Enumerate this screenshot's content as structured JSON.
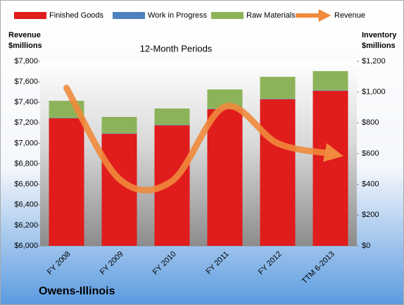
{
  "chart_data": {
    "type": "bar_line",
    "title": "12-Month Periods",
    "footer": "Owens-Illinois",
    "y_label": [
      "Revenue",
      "$millions"
    ],
    "y2_label": [
      "Inventory",
      "$millions"
    ],
    "categories": [
      "FY 2008",
      "FY 2009",
      "FY 2010",
      "FY 2011",
      "FY 2012",
      "TTM 6-2013"
    ],
    "series": [
      {
        "name": "Finished Goods",
        "color": "#e01c1c",
        "axis": "y2",
        "values": [
          829,
          728,
          783,
          889,
          953,
          1008
        ]
      },
      {
        "name": "Work in Progress",
        "color": "#4f81bd",
        "axis": "y2",
        "values": [
          3,
          3,
          3,
          3,
          3,
          3
        ]
      },
      {
        "name": "Raw Materials",
        "color": "#8db35a",
        "axis": "y2",
        "values": [
          111,
          107,
          107,
          125,
          143,
          125
        ]
      },
      {
        "name": "Revenue",
        "color": "#f08a3c",
        "type": "line",
        "values": [
          7540,
          6652,
          6633,
          7358,
          7000,
          6900
        ]
      }
    ],
    "ylim": [
      6000,
      7800
    ],
    "yticks": [
      {
        "value": 6000,
        "label": "$6,000"
      },
      {
        "value": 6200,
        "label": "$6,200"
      },
      {
        "value": 6400,
        "label": "$6,400"
      },
      {
        "value": 6600,
        "label": "$6,600"
      },
      {
        "value": 6800,
        "label": "$6,800"
      },
      {
        "value": 7000,
        "label": "$7,000"
      },
      {
        "value": 7200,
        "label": "$7,200"
      },
      {
        "value": 7400,
        "label": "$7,400"
      },
      {
        "value": 7600,
        "label": "$7,600"
      },
      {
        "value": 7800,
        "label": "$7,800"
      }
    ],
    "y2lim": [
      0,
      1200
    ],
    "y2ticks": [
      {
        "value": 0,
        "label": "$0"
      },
      {
        "value": 200,
        "label": "$200"
      },
      {
        "value": 400,
        "label": "$400"
      },
      {
        "value": 600,
        "label": "$600"
      },
      {
        "value": 800,
        "label": "$800"
      },
      {
        "value": 1000,
        "label": "$1,000"
      },
      {
        "value": 1200,
        "label": "$1,200"
      }
    ],
    "legend": "top"
  }
}
